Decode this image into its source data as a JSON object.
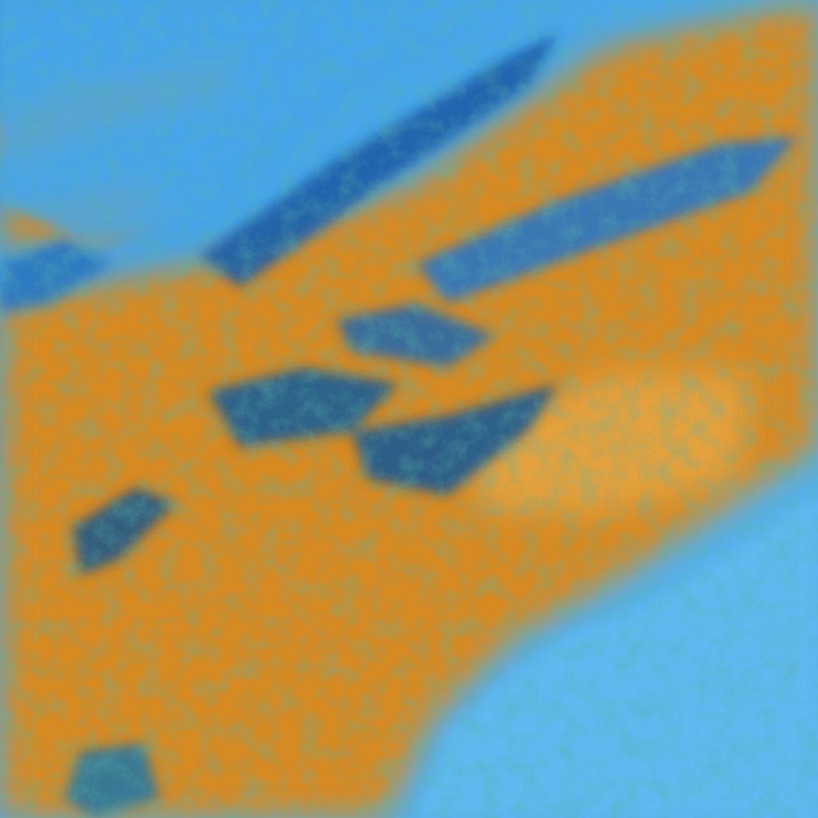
{
  "image": {
    "kind": "false-color satellite cloud imagery",
    "colors": {
      "clear_sky": "#5cb6ee",
      "deep_blue": "#1e6fc8",
      "high_cloud": "#d98a1e",
      "mid_cloud": "#e0a030",
      "edge_green": "#2f8f6a",
      "shadow": "#154a7a"
    }
  }
}
